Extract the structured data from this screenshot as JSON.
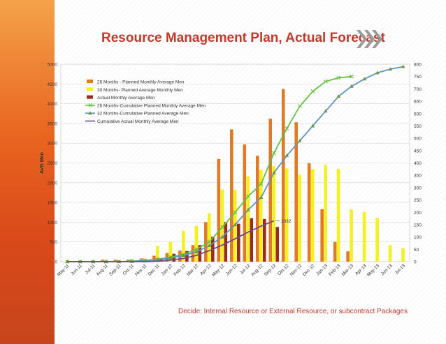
{
  "title": "Resource Management Plan, Actual Forecast",
  "footer": "Decide: Internal Resource or External Resource, or subcontract Packages",
  "colors": {
    "planned26": "#e07a26",
    "planned30": "#f5f11a",
    "actual": "#9b2a21",
    "cum26": "#62c045",
    "cum32": "#5b95c6",
    "cumActual": "#6a4a8c",
    "title": "#c0392b",
    "chevron": "#9a9a9a"
  },
  "chart_data": {
    "type": "bar",
    "title": "Resource Management Plan, Actual Forecast",
    "ylabel": "AVG Men",
    "xlabel": "",
    "ylim": [
      0,
      5000
    ],
    "y2lim": [
      0,
      800
    ],
    "yticks": [
      "0",
      "500",
      "1000",
      "1500",
      "2000",
      "2500",
      "3000",
      "3500",
      "4000",
      "4500",
      "5000"
    ],
    "y2ticks": [
      "0",
      "50",
      "100",
      "150",
      "200",
      "250",
      "300",
      "350",
      "400",
      "450",
      "500",
      "550",
      "600",
      "650",
      "700",
      "750",
      "800"
    ],
    "categories": [
      "May-11",
      "Jun-11",
      "Jul-11",
      "Aug-11",
      "Sep-11",
      "Oct-11",
      "Nov-11",
      "Dec-11",
      "Jan-12",
      "Feb-12",
      "Mar-12",
      "Apr-12",
      "May-12",
      "Jun-12",
      "Jul-12",
      "Aug-12",
      "Sep-12",
      "Oct-12",
      "Nov-12",
      "Dec-12",
      "Jan-13",
      "Feb-13",
      "Mar-13",
      "Apr-13",
      "May-13",
      "Jun-13",
      "Jul-13"
    ],
    "annotation": {
      "text": "1032",
      "category": "Sep-12",
      "value": 1032
    },
    "series": [
      {
        "name": "26 Months - Planned Monthly Average Men",
        "kind": "bar",
        "axis": "left",
        "values": [
          0,
          0,
          0,
          50,
          50,
          50,
          80,
          150,
          220,
          280,
          420,
          1000,
          2600,
          3350,
          2970,
          2680,
          3620,
          4370,
          3530,
          2490,
          1330,
          500,
          260,
          null,
          null,
          null,
          null
        ]
      },
      {
        "name": "30 Months- Planned Average Monthly Men",
        "kind": "bar",
        "axis": "left",
        "values": [
          0,
          0,
          0,
          0,
          0,
          60,
          80,
          400,
          500,
          780,
          900,
          1220,
          1830,
          1820,
          2160,
          2330,
          2420,
          2360,
          2200,
          2340,
          2450,
          2350,
          1320,
          1260,
          1110,
          420,
          340
        ]
      },
      {
        "name": "Actual Monthly Average Men",
        "kind": "bar",
        "axis": "left",
        "values": [
          0,
          0,
          0,
          0,
          0,
          0,
          0,
          50,
          200,
          270,
          420,
          630,
          1000,
          960,
          1100,
          1080,
          880,
          null,
          null,
          null,
          null,
          null,
          null,
          null,
          null,
          null,
          null
        ]
      },
      {
        "name": "26 Months-Cumulative Planned Monthly Average Men",
        "kind": "line",
        "marker": "x",
        "axis": "right",
        "values": [
          0,
          0,
          0,
          0,
          0,
          2,
          5,
          10,
          18,
          30,
          50,
          80,
          140,
          200,
          265,
          315,
          440,
          540,
          630,
          690,
          730,
          745,
          750,
          null,
          null,
          null,
          null
        ]
      },
      {
        "name": "32 Months-Cumulative Planned Average Men",
        "kind": "line",
        "marker": "triangle",
        "axis": "right",
        "values": [
          0,
          0,
          0,
          0,
          0,
          1,
          3,
          8,
          15,
          25,
          40,
          65,
          100,
          150,
          210,
          260,
          360,
          430,
          490,
          550,
          610,
          670,
          710,
          740,
          765,
          780,
          790
        ]
      },
      {
        "name": "Cumulative Actual Monthly Average Men",
        "kind": "line",
        "marker": "none",
        "axis": "left",
        "values": [
          0,
          0,
          0,
          0,
          0,
          0,
          0,
          10,
          40,
          80,
          160,
          280,
          420,
          580,
          750,
          900,
          1032,
          null,
          null,
          null,
          null,
          null,
          null,
          null,
          null,
          null,
          null
        ]
      }
    ]
  }
}
